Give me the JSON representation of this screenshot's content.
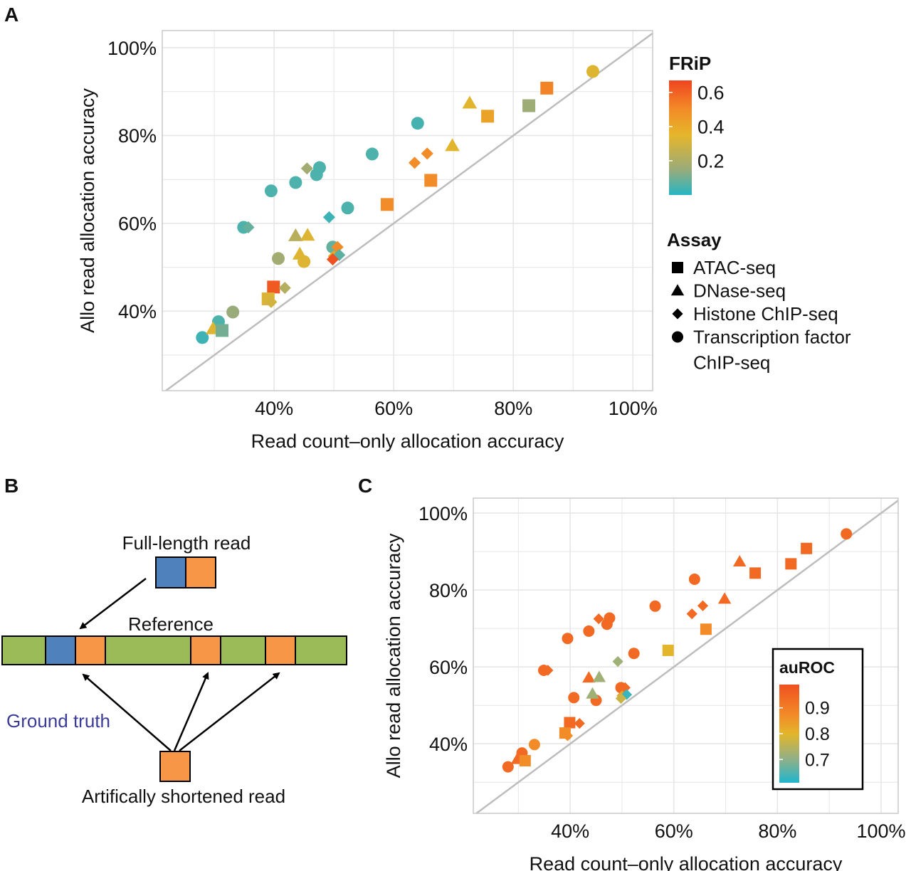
{
  "panels": {
    "a": "A",
    "b": "B",
    "c": "C"
  },
  "chart_data": [
    {
      "panel": "A",
      "type": "scatter",
      "xlabel": "Read count–only allocation accuracy",
      "ylabel": "Allo read allocation accuracy",
      "xlim": [
        21.3,
        103.3
      ],
      "ylim": [
        21.9,
        103.9
      ],
      "x_ticks": [
        "40%",
        "60%",
        "80%",
        "100%"
      ],
      "y_ticks": [
        "40%",
        "60%",
        "80%",
        "100%"
      ],
      "grid": true,
      "reference_line": "y = x",
      "color_by": "frip",
      "colorbar": {
        "title": "FRiP",
        "ticks": [
          "0.2",
          "0.4",
          "0.6"
        ],
        "range": [
          0.0,
          0.67
        ],
        "stops": [
          [
            0.0,
            "#26b5c4"
          ],
          [
            0.15,
            "#9aab7a"
          ],
          [
            0.35,
            "#e5b62a"
          ],
          [
            0.5,
            "#f28c28"
          ],
          [
            0.67,
            "#f0441f"
          ]
        ],
        "placement": "right"
      },
      "shape_legend": {
        "title": "Assay",
        "items": [
          {
            "shape": "square",
            "label": "ATAC-seq"
          },
          {
            "shape": "triangle",
            "label": "DNase-seq"
          },
          {
            "shape": "diamond",
            "label": "Histone ChIP-seq"
          },
          {
            "shape": "circle",
            "label": "Transcription factor",
            "label2": "ChIP-seq"
          }
        ]
      }
    },
    {
      "panel": "C",
      "type": "scatter",
      "xlabel": "Read count–only allocation accuracy",
      "ylabel": "Allo read allocation accuracy",
      "xlim": [
        21.3,
        103.3
      ],
      "ylim": [
        21.9,
        103.9
      ],
      "x_ticks": [
        "40%",
        "60%",
        "80%",
        "100%"
      ],
      "y_ticks": [
        "40%",
        "60%",
        "80%",
        "100%"
      ],
      "grid": true,
      "reference_line": "y = x",
      "color_by": "auroc",
      "colorbar": {
        "title": "auROC",
        "ticks": [
          "0.9",
          "0.8",
          "0.7"
        ],
        "range": [
          0.61,
          0.99
        ],
        "stops": [
          [
            0.61,
            "#1fb6cc"
          ],
          [
            0.7,
            "#8fb08a"
          ],
          [
            0.8,
            "#e3b52a"
          ],
          [
            0.87,
            "#f28c28"
          ],
          [
            0.99,
            "#f0501f"
          ]
        ],
        "placement": "inside-bottom-right"
      }
    }
  ],
  "points": [
    {
      "assay": "circle",
      "x": 28.0,
      "y": 34.0,
      "frip": 0.03,
      "auroc": 0.94
    },
    {
      "assay": "circle",
      "x": 30.7,
      "y": 37.6,
      "frip": 0.05,
      "auroc": 0.94
    },
    {
      "assay": "circle",
      "x": 33.1,
      "y": 39.8,
      "frip": 0.15,
      "auroc": 0.87
    },
    {
      "assay": "circle",
      "x": 39.5,
      "y": 67.4,
      "frip": 0.05,
      "auroc": 0.94
    },
    {
      "assay": "circle",
      "x": 43.6,
      "y": 69.3,
      "frip": 0.05,
      "auroc": 0.94
    },
    {
      "assay": "circle",
      "x": 47.6,
      "y": 72.7,
      "frip": 0.05,
      "auroc": 0.94
    },
    {
      "assay": "circle",
      "x": 47.1,
      "y": 71.1,
      "frip": 0.05,
      "auroc": 0.94
    },
    {
      "assay": "circle",
      "x": 40.7,
      "y": 52.0,
      "frip": 0.17,
      "auroc": 0.94
    },
    {
      "assay": "circle",
      "x": 45.0,
      "y": 51.3,
      "frip": 0.33,
      "auroc": 0.94
    },
    {
      "assay": "circle",
      "x": 34.9,
      "y": 59.1,
      "frip": 0.05,
      "auroc": 0.94
    },
    {
      "assay": "circle",
      "x": 52.3,
      "y": 63.5,
      "frip": 0.05,
      "auroc": 0.94
    },
    {
      "assay": "circle",
      "x": 56.4,
      "y": 75.8,
      "frip": 0.05,
      "auroc": 0.94
    },
    {
      "assay": "circle",
      "x": 64.0,
      "y": 82.8,
      "frip": 0.04,
      "auroc": 0.94
    },
    {
      "assay": "circle",
      "x": 93.3,
      "y": 94.6,
      "frip": 0.33,
      "auroc": 0.94
    },
    {
      "assay": "circle",
      "x": 49.8,
      "y": 54.6,
      "frip": 0.08,
      "auroc": 0.94
    },
    {
      "assay": "triangle",
      "x": 29.8,
      "y": 36.0,
      "frip": 0.33,
      "auroc": 0.94
    },
    {
      "assay": "triangle",
      "x": 43.6,
      "y": 57.2,
      "frip": 0.23,
      "auroc": 0.94
    },
    {
      "assay": "triangle",
      "x": 45.6,
      "y": 57.3,
      "frip": 0.33,
      "auroc": 0.72
    },
    {
      "assay": "triangle",
      "x": 44.3,
      "y": 53.0,
      "frip": 0.33,
      "auroc": 0.72
    },
    {
      "assay": "triangle",
      "x": 72.7,
      "y": 87.4,
      "frip": 0.34,
      "auroc": 0.94
    },
    {
      "assay": "triangle",
      "x": 69.8,
      "y": 77.7,
      "frip": 0.34,
      "auroc": 0.94
    },
    {
      "assay": "square",
      "x": 31.3,
      "y": 35.6,
      "frip": 0.1,
      "auroc": 0.87
    },
    {
      "assay": "square",
      "x": 39.9,
      "y": 45.5,
      "frip": 0.62,
      "auroc": 0.94
    },
    {
      "assay": "square",
      "x": 39.0,
      "y": 42.8,
      "frip": 0.32,
      "auroc": 0.87
    },
    {
      "assay": "square",
      "x": 58.9,
      "y": 64.3,
      "frip": 0.5,
      "auroc": 0.8
    },
    {
      "assay": "square",
      "x": 66.2,
      "y": 69.8,
      "frip": 0.5,
      "auroc": 0.87
    },
    {
      "assay": "square",
      "x": 75.7,
      "y": 84.4,
      "frip": 0.42,
      "auroc": 0.94
    },
    {
      "assay": "square",
      "x": 82.6,
      "y": 86.8,
      "frip": 0.16,
      "auroc": 0.94
    },
    {
      "assay": "square",
      "x": 85.6,
      "y": 90.8,
      "frip": 0.52,
      "auroc": 0.94
    },
    {
      "assay": "diamond",
      "x": 35.7,
      "y": 59.1,
      "frip": 0.08,
      "auroc": 0.94
    },
    {
      "assay": "diamond",
      "x": 45.5,
      "y": 72.5,
      "frip": 0.17,
      "auroc": 0.94
    },
    {
      "assay": "diamond",
      "x": 49.2,
      "y": 61.4,
      "frip": 0.03,
      "auroc": 0.72
    },
    {
      "assay": "diamond",
      "x": 41.8,
      "y": 45.3,
      "frip": 0.22,
      "auroc": 0.94
    },
    {
      "assay": "diamond",
      "x": 39.5,
      "y": 42.1,
      "frip": 0.3,
      "auroc": 0.87
    },
    {
      "assay": "diamond",
      "x": 50.6,
      "y": 54.6,
      "frip": 0.5,
      "auroc": 0.94
    },
    {
      "assay": "diamond",
      "x": 50.0,
      "y": 52.5,
      "frip": 0.4,
      "auroc": 0.84
    },
    {
      "assay": "diamond",
      "x": 50.9,
      "y": 52.8,
      "frip": 0.07,
      "auroc": 0.63
    },
    {
      "assay": "diamond",
      "x": 49.8,
      "y": 51.8,
      "frip": 0.64,
      "auroc": 0.77
    },
    {
      "assay": "diamond",
      "x": 63.5,
      "y": 73.8,
      "frip": 0.5,
      "auroc": 0.94
    },
    {
      "assay": "diamond",
      "x": 65.6,
      "y": 75.9,
      "frip": 0.5,
      "auroc": 0.94
    }
  ],
  "diagram": {
    "full_length_label": "Full-length read",
    "reference_label": "Reference",
    "ground_truth_label": "Ground truth",
    "shortened_label": "Artifically shortened read",
    "colors": {
      "blue": "#4f81bd",
      "orange": "#f79646",
      "green": "#9bbb59",
      "ground_truth_text": "#3b3b9a"
    }
  }
}
